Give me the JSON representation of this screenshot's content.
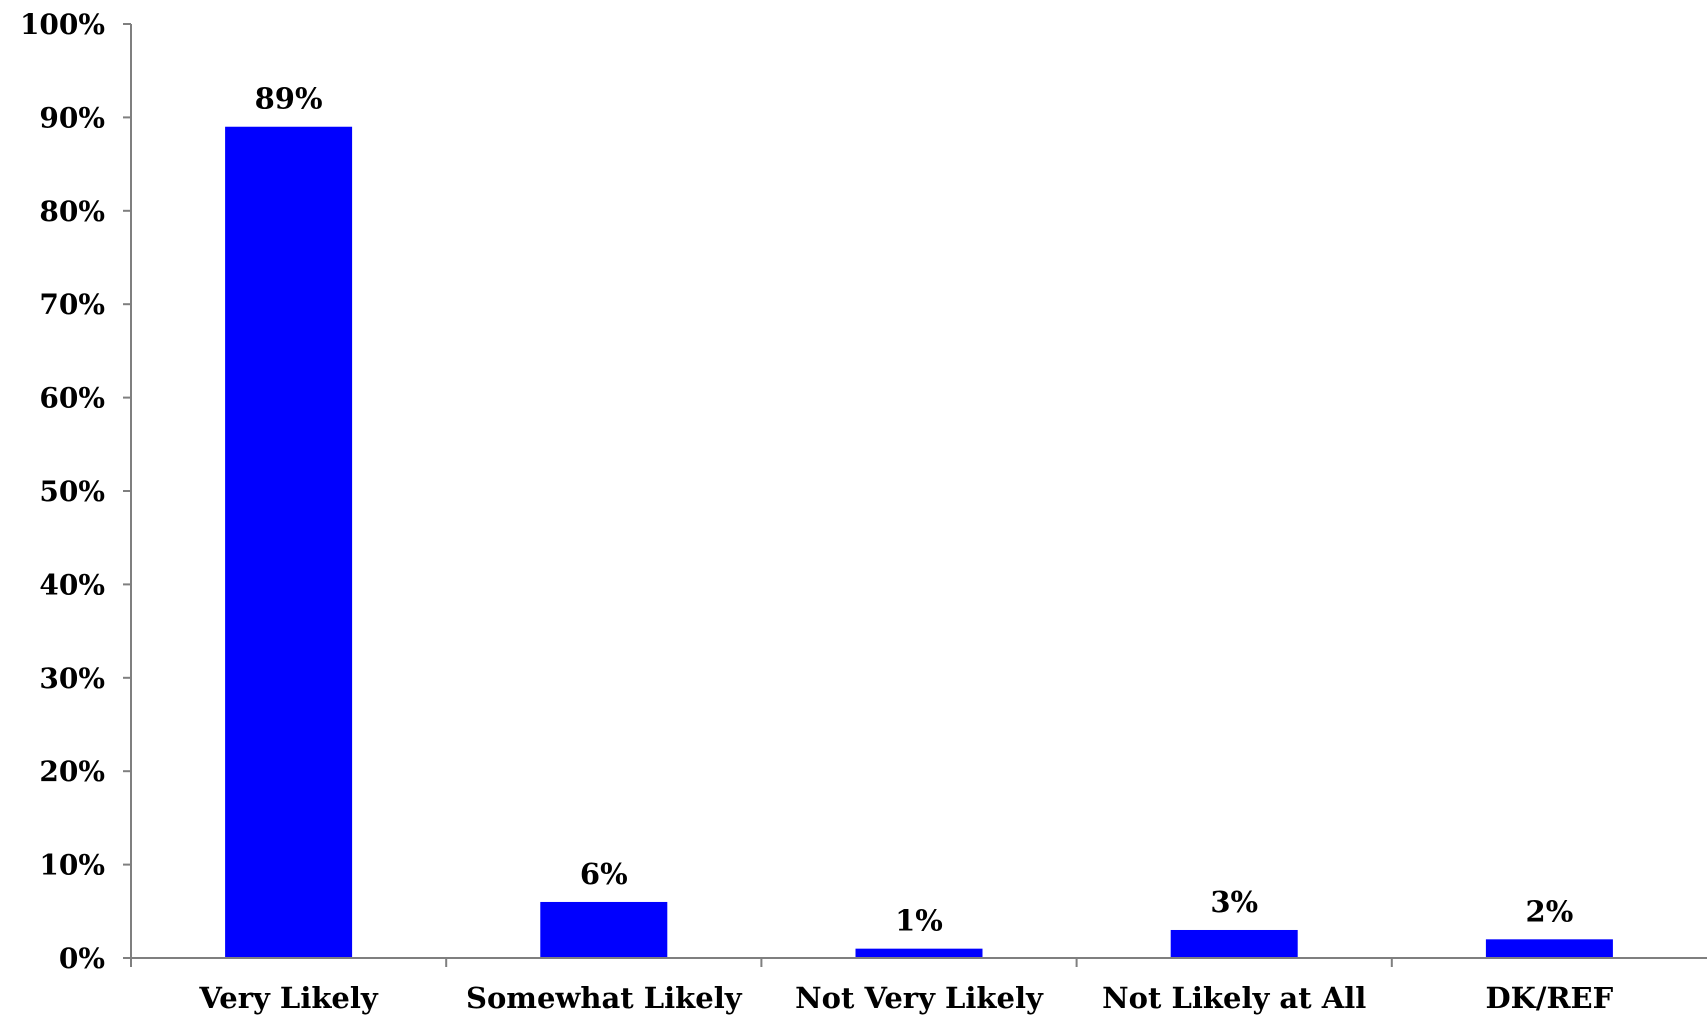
{
  "chart_data": {
    "type": "bar",
    "categories": [
      "Very Likely",
      "Somewhat Likely",
      "Not Very Likely",
      "Not Likely at All",
      "DK/REF"
    ],
    "values": [
      89,
      6,
      1,
      3,
      2
    ],
    "data_labels": [
      "89%",
      "6%",
      "1%",
      "3%",
      "2%"
    ],
    "ylim": [
      0,
      100
    ],
    "y_ticks": [
      "0%",
      "10%",
      "20%",
      "30%",
      "40%",
      "50%",
      "60%",
      "70%",
      "80%",
      "90%",
      "100%"
    ],
    "title": "",
    "xlabel": "",
    "ylabel": "",
    "grid": false,
    "legend": "none",
    "bar_color": "#0000ff",
    "axis_color": "#7f7f7f"
  }
}
